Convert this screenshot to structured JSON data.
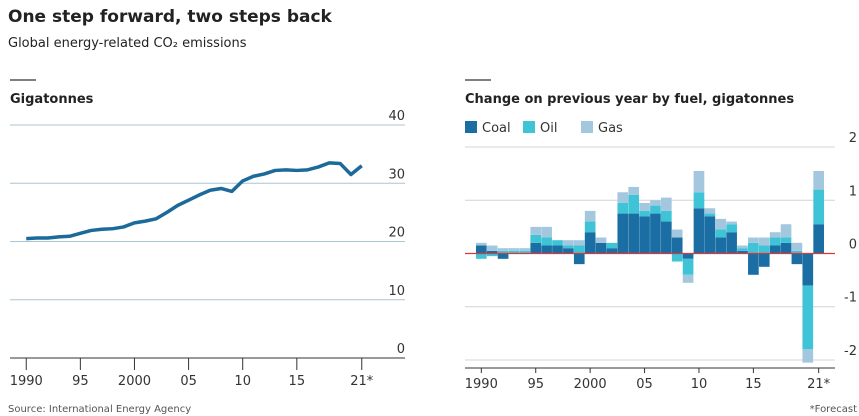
{
  "header": {
    "title": "One step forward, two steps back",
    "subtitle": "Global energy-related CO₂ emissions"
  },
  "footer": {
    "source": "Source: International Energy Agency",
    "note": "*Forecast"
  },
  "chart_data": [
    {
      "type": "line",
      "y_label": "Gigatonnes",
      "x": [
        1990,
        1991,
        1992,
        1993,
        1994,
        1995,
        1996,
        1997,
        1998,
        1999,
        2000,
        2001,
        2002,
        2003,
        2004,
        2005,
        2006,
        2007,
        2008,
        2009,
        2010,
        2011,
        2012,
        2013,
        2014,
        2015,
        2016,
        2017,
        2018,
        2019,
        2020,
        2021
      ],
      "series": [
        {
          "name": "Emissions",
          "color": "#1b6a9a",
          "values": [
            20.5,
            20.6,
            20.6,
            20.8,
            20.9,
            21.4,
            21.9,
            22.1,
            22.2,
            22.5,
            23.2,
            23.5,
            23.9,
            25.0,
            26.2,
            27.1,
            28.0,
            28.8,
            29.1,
            28.6,
            30.4,
            31.2,
            31.6,
            32.2,
            32.3,
            32.2,
            32.3,
            32.8,
            33.5,
            33.4,
            31.5,
            33.0
          ]
        }
      ],
      "xlim": [
        1988.5,
        2022.5
      ],
      "xticks": [
        {
          "value": 1990,
          "label": "1990"
        },
        {
          "value": 1995,
          "label": "95"
        },
        2000,
        {
          "value": 2005,
          "label": "05"
        },
        {
          "value": 2010,
          "label": "10"
        },
        {
          "value": 2015,
          "label": "15"
        },
        {
          "value": 2021,
          "label": "21*"
        }
      ],
      "ylim": [
        0,
        40
      ],
      "yticks": [
        0,
        10,
        20,
        30,
        40
      ],
      "grid": true
    },
    {
      "type": "bar",
      "stacked": true,
      "y_label": "Change on previous year by fuel, gigatonnes",
      "legend": "top-left",
      "zero_line_color": "#d9383a",
      "x": [
        1990,
        1991,
        1992,
        1993,
        1994,
        1995,
        1996,
        1997,
        1998,
        1999,
        2000,
        2001,
        2002,
        2003,
        2004,
        2005,
        2006,
        2007,
        2008,
        2009,
        2010,
        2011,
        2012,
        2013,
        2014,
        2015,
        2016,
        2017,
        2018,
        2019,
        2020,
        2021
      ],
      "series": [
        {
          "name": "Coal",
          "color": "#1a6ea3",
          "values": [
            0.15,
            0.05,
            -0.1,
            0.0,
            0.0,
            0.2,
            0.15,
            0.15,
            0.1,
            -0.2,
            0.4,
            0.2,
            0.1,
            0.75,
            0.75,
            0.7,
            0.75,
            0.6,
            0.3,
            -0.1,
            0.85,
            0.7,
            0.3,
            0.4,
            0.05,
            -0.4,
            -0.25,
            0.15,
            0.2,
            -0.2,
            -0.6,
            0.55
          ]
        },
        {
          "name": "Oil",
          "color": "#3ec4d6",
          "values": [
            -0.1,
            -0.05,
            0.05,
            0.05,
            0.05,
            0.15,
            0.15,
            0.1,
            0.05,
            0.15,
            0.2,
            0.0,
            0.1,
            0.2,
            0.35,
            0.1,
            0.15,
            0.2,
            -0.15,
            -0.3,
            0.3,
            0.05,
            0.15,
            0.15,
            0.05,
            0.2,
            0.15,
            0.15,
            0.1,
            0.05,
            -1.2,
            0.65
          ]
        },
        {
          "name": "Gas",
          "color": "#a3c7de",
          "values": [
            0.05,
            0.1,
            0.05,
            0.05,
            0.05,
            0.15,
            0.2,
            0.0,
            0.1,
            0.1,
            0.2,
            0.1,
            0.0,
            0.2,
            0.15,
            0.15,
            0.1,
            0.25,
            0.15,
            -0.15,
            0.4,
            0.1,
            0.2,
            0.05,
            0.05,
            0.1,
            0.15,
            0.1,
            0.25,
            0.15,
            -0.25,
            0.35
          ]
        }
      ],
      "xlim": [
        1988.5,
        2022.5
      ],
      "xticks": [
        {
          "value": 1990,
          "label": "1990"
        },
        {
          "value": 1995,
          "label": "95"
        },
        2000,
        {
          "value": 2005,
          "label": "05"
        },
        {
          "value": 2010,
          "label": "10"
        },
        {
          "value": 2015,
          "label": "15"
        },
        {
          "value": 2021,
          "label": "21*"
        }
      ],
      "ylim": [
        -2.1,
        2.1
      ],
      "yticks": [
        -2,
        -1,
        0,
        1,
        2
      ],
      "grid": true
    }
  ]
}
